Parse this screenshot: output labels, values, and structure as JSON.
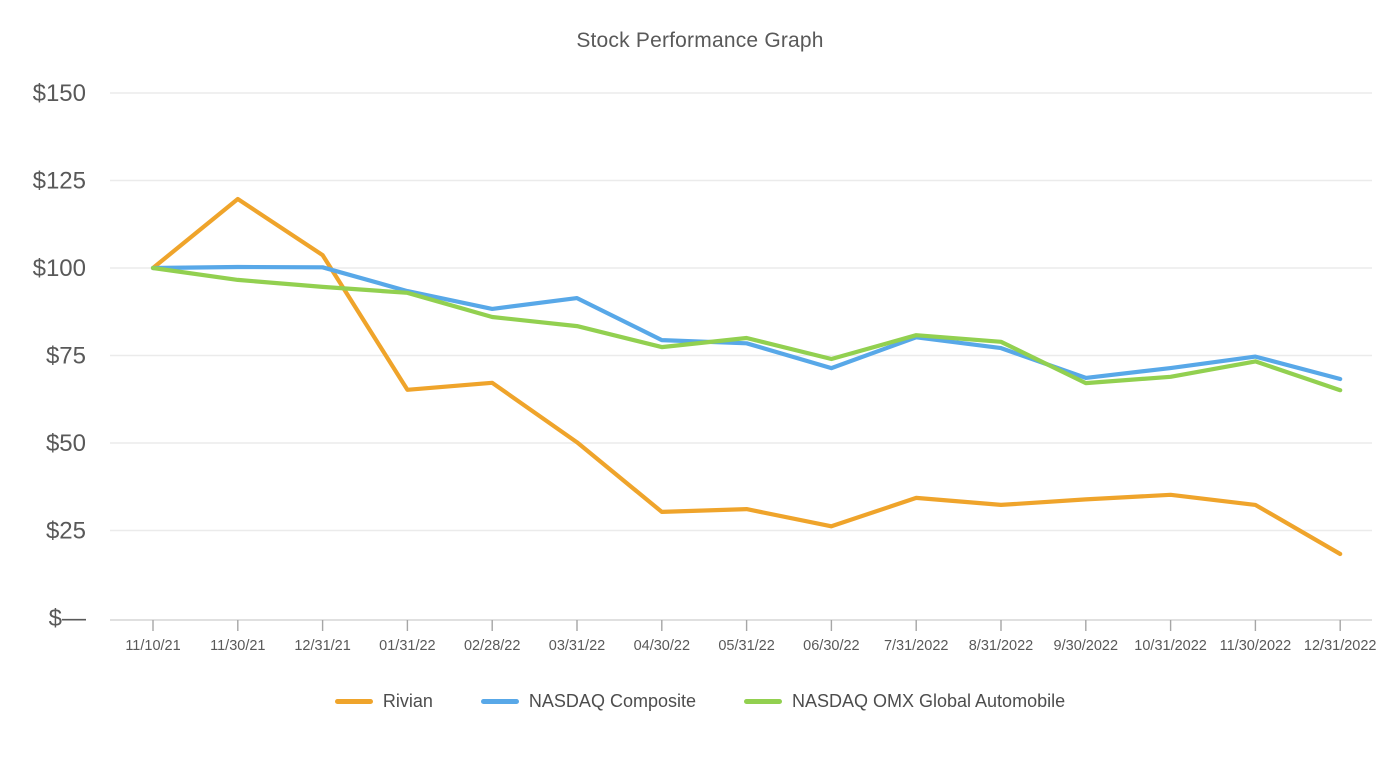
{
  "chart_data": {
    "type": "line",
    "title": "Stock Performance Graph",
    "xlabel": "",
    "ylabel": "",
    "ylim": [
      0,
      150
    ],
    "grid": true,
    "legend_position": "bottom",
    "categories": [
      "11/10/21",
      "11/30/21",
      "12/31/21",
      "01/31/22",
      "02/28/22",
      "03/31/22",
      "04/30/22",
      "05/31/22",
      "06/30/22",
      "7/31/2022",
      "8/31/2022",
      "9/30/2022",
      "10/31/2022",
      "11/30/2022",
      "12/31/2022"
    ],
    "y_ticks": [
      {
        "label": "$150",
        "value": 150
      },
      {
        "label": "$125",
        "value": 125
      },
      {
        "label": "$100",
        "value": 100
      },
      {
        "label": "$75",
        "value": 75
      },
      {
        "label": "$50",
        "value": 50
      },
      {
        "label": "$25",
        "value": 25
      },
      {
        "label": "$—",
        "value": 0
      }
    ],
    "series": [
      {
        "name": "Rivian",
        "color": "#EFA42B",
        "values": [
          100.0,
          119.7,
          103.7,
          65.2,
          67.2,
          50.2,
          30.3,
          31.1,
          26.2,
          34.3,
          32.3,
          33.9,
          35.2,
          32.3,
          18.3
        ]
      },
      {
        "name": "NASDAQ Composite",
        "color": "#58A8E8",
        "values": [
          100.0,
          100.3,
          100.2,
          93.4,
          88.3,
          91.4,
          79.4,
          78.5,
          71.4,
          80.2,
          77.1,
          68.6,
          71.4,
          74.7,
          68.3
        ]
      },
      {
        "name": "NASDAQ OMX Global Automobile",
        "color": "#92D050",
        "values": [
          100.0,
          96.6,
          94.6,
          92.9,
          86.0,
          83.4,
          77.4,
          80.0,
          74.0,
          80.8,
          78.9,
          67.1,
          68.9,
          73.3,
          65.1
        ]
      }
    ],
    "colors": {
      "background": "#ffffff",
      "grid": "#ebebeb",
      "axis": "#d6d6d6",
      "tick": "#a6a6a6",
      "axis_text": "#595959",
      "title_text": "#595959",
      "legend_text": "#4d4d4d"
    }
  }
}
